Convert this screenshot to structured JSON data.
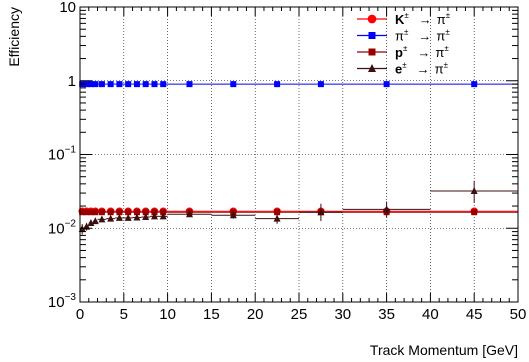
{
  "chart_data": {
    "type": "scatter",
    "xlabel": "Track Momentum [GeV]",
    "ylabel": "Efficiency",
    "xlim": [
      0,
      50
    ],
    "ylim": [
      0.001,
      10
    ],
    "yscale": "log",
    "grid": true,
    "legend_position": "top-right",
    "x_ticks": [
      0,
      5,
      10,
      15,
      20,
      25,
      30,
      35,
      40,
      45,
      50
    ],
    "x_tick_labels": [
      "0",
      "5",
      "10",
      "15",
      "20",
      "25",
      "30",
      "35",
      "40",
      "45",
      "50"
    ],
    "y_ticks": [
      0.001,
      0.01,
      0.1,
      1,
      10
    ],
    "y_tick_labels": [
      {
        "base": "10",
        "exp": "−3"
      },
      {
        "base": "10",
        "exp": "−2"
      },
      {
        "base": "10",
        "exp": "−1"
      },
      {
        "base": "1",
        "exp": ""
      },
      {
        "base": "10",
        "exp": ""
      }
    ],
    "series": [
      {
        "name": "K± → π±",
        "legend_particle": "K",
        "legend_target": "π",
        "legend_charge": "±",
        "legend_arrow": "→",
        "color": "#ff0000",
        "marker": "circle",
        "points": [
          {
            "x": 0.25,
            "y": 0.017,
            "xerr": 0.25
          },
          {
            "x": 0.75,
            "y": 0.017,
            "xerr": 0.25
          },
          {
            "x": 1.25,
            "y": 0.017,
            "xerr": 0.25
          },
          {
            "x": 1.75,
            "y": 0.017,
            "xerr": 0.25
          },
          {
            "x": 2.5,
            "y": 0.017,
            "xerr": 0.5
          },
          {
            "x": 3.5,
            "y": 0.017,
            "xerr": 0.5
          },
          {
            "x": 4.5,
            "y": 0.017,
            "xerr": 0.5
          },
          {
            "x": 5.5,
            "y": 0.017,
            "xerr": 0.5
          },
          {
            "x": 6.5,
            "y": 0.017,
            "xerr": 0.5
          },
          {
            "x": 7.5,
            "y": 0.017,
            "xerr": 0.5
          },
          {
            "x": 8.5,
            "y": 0.017,
            "xerr": 0.5
          },
          {
            "x": 9.5,
            "y": 0.017,
            "xerr": 0.5
          },
          {
            "x": 12.5,
            "y": 0.017,
            "xerr": 2.5
          },
          {
            "x": 17.5,
            "y": 0.017,
            "xerr": 2.5
          },
          {
            "x": 22.5,
            "y": 0.017,
            "xerr": 2.5
          },
          {
            "x": 27.5,
            "y": 0.017,
            "xerr": 2.5
          },
          {
            "x": 35,
            "y": 0.017,
            "xerr": 5
          },
          {
            "x": 45,
            "y": 0.017,
            "xerr": 5
          }
        ]
      },
      {
        "name": "π± → π±",
        "legend_particle": "π",
        "legend_target": "π",
        "legend_charge": "±",
        "legend_arrow": "→",
        "color": "#0000ff",
        "marker": "square",
        "points": [
          {
            "x": 0.25,
            "y": 0.9,
            "xerr": 0.25
          },
          {
            "x": 0.75,
            "y": 0.9,
            "xerr": 0.25
          },
          {
            "x": 1.25,
            "y": 0.9,
            "xerr": 0.25
          },
          {
            "x": 1.75,
            "y": 0.9,
            "xerr": 0.25
          },
          {
            "x": 2.5,
            "y": 0.9,
            "xerr": 0.5
          },
          {
            "x": 3.5,
            "y": 0.9,
            "xerr": 0.5
          },
          {
            "x": 4.5,
            "y": 0.9,
            "xerr": 0.5
          },
          {
            "x": 5.5,
            "y": 0.9,
            "xerr": 0.5
          },
          {
            "x": 6.5,
            "y": 0.9,
            "xerr": 0.5
          },
          {
            "x": 7.5,
            "y": 0.9,
            "xerr": 0.5
          },
          {
            "x": 8.5,
            "y": 0.9,
            "xerr": 0.5
          },
          {
            "x": 9.5,
            "y": 0.9,
            "xerr": 0.5
          },
          {
            "x": 12.5,
            "y": 0.9,
            "xerr": 2.5
          },
          {
            "x": 17.5,
            "y": 0.9,
            "xerr": 2.5
          },
          {
            "x": 22.5,
            "y": 0.9,
            "xerr": 2.5
          },
          {
            "x": 27.5,
            "y": 0.9,
            "xerr": 2.5
          },
          {
            "x": 35,
            "y": 0.9,
            "xerr": 5
          },
          {
            "x": 45,
            "y": 0.9,
            "xerr": 5
          }
        ]
      },
      {
        "name": "p± → π±",
        "legend_particle": "p",
        "legend_target": "π",
        "legend_charge": "±",
        "legend_arrow": "→",
        "color": "#990000",
        "marker": "square",
        "points": [
          {
            "x": 0.25,
            "y": 0.0165,
            "xerr": 0.25
          },
          {
            "x": 0.75,
            "y": 0.0165,
            "xerr": 0.25
          },
          {
            "x": 1.25,
            "y": 0.0165,
            "xerr": 0.25
          },
          {
            "x": 1.75,
            "y": 0.0165,
            "xerr": 0.25
          },
          {
            "x": 2.5,
            "y": 0.0165,
            "xerr": 0.5
          },
          {
            "x": 3.5,
            "y": 0.0165,
            "xerr": 0.5
          },
          {
            "x": 4.5,
            "y": 0.0165,
            "xerr": 0.5
          },
          {
            "x": 5.5,
            "y": 0.0165,
            "xerr": 0.5
          },
          {
            "x": 6.5,
            "y": 0.0165,
            "xerr": 0.5
          },
          {
            "x": 7.5,
            "y": 0.0165,
            "xerr": 0.5
          },
          {
            "x": 8.5,
            "y": 0.0165,
            "xerr": 0.5
          },
          {
            "x": 9.5,
            "y": 0.0165,
            "xerr": 0.5
          },
          {
            "x": 12.5,
            "y": 0.0165,
            "xerr": 2.5
          },
          {
            "x": 17.5,
            "y": 0.0165,
            "xerr": 2.5
          },
          {
            "x": 22.5,
            "y": 0.0165,
            "xerr": 2.5
          },
          {
            "x": 27.5,
            "y": 0.0165,
            "xerr": 2.5
          },
          {
            "x": 35,
            "y": 0.0165,
            "xerr": 5
          },
          {
            "x": 45,
            "y": 0.0165,
            "xerr": 5
          }
        ]
      },
      {
        "name": "e± → π±",
        "legend_particle": "e",
        "legend_target": "π",
        "legend_charge": "±",
        "legend_arrow": "→",
        "color": "#3d0f0f",
        "marker": "triangle",
        "points": [
          {
            "x": 0.25,
            "y": 0.0098,
            "xerr": 0.25,
            "yerr_lo": 0.0016,
            "yerr_hi": 0.0016
          },
          {
            "x": 0.75,
            "y": 0.0105,
            "xerr": 0.25,
            "yerr_lo": 0.0012,
            "yerr_hi": 0.0012
          },
          {
            "x": 1.25,
            "y": 0.0118,
            "xerr": 0.25,
            "yerr_lo": 0.001,
            "yerr_hi": 0.001
          },
          {
            "x": 1.75,
            "y": 0.0125,
            "xerr": 0.25,
            "yerr_lo": 0.001,
            "yerr_hi": 0.001
          },
          {
            "x": 2.5,
            "y": 0.0132,
            "xerr": 0.5,
            "yerr_lo": 0.0009,
            "yerr_hi": 0.0009
          },
          {
            "x": 3.5,
            "y": 0.0135,
            "xerr": 0.5,
            "yerr_lo": 0.0009,
            "yerr_hi": 0.0009
          },
          {
            "x": 4.5,
            "y": 0.0138,
            "xerr": 0.5,
            "yerr_lo": 0.0009,
            "yerr_hi": 0.0009
          },
          {
            "x": 5.5,
            "y": 0.0138,
            "xerr": 0.5,
            "yerr_lo": 0.0009,
            "yerr_hi": 0.0009
          },
          {
            "x": 6.5,
            "y": 0.014,
            "xerr": 0.5,
            "yerr_lo": 0.001,
            "yerr_hi": 0.001
          },
          {
            "x": 7.5,
            "y": 0.0142,
            "xerr": 0.5,
            "yerr_lo": 0.001,
            "yerr_hi": 0.001
          },
          {
            "x": 8.5,
            "y": 0.0145,
            "xerr": 0.5,
            "yerr_lo": 0.0011,
            "yerr_hi": 0.0011
          },
          {
            "x": 9.5,
            "y": 0.0145,
            "xerr": 0.5,
            "yerr_lo": 0.0012,
            "yerr_hi": 0.0012
          },
          {
            "x": 12.5,
            "y": 0.0155,
            "xerr": 2.5,
            "yerr_lo": 0.001,
            "yerr_hi": 0.001
          },
          {
            "x": 17.5,
            "y": 0.015,
            "xerr": 2.5,
            "yerr_lo": 0.0015,
            "yerr_hi": 0.0015
          },
          {
            "x": 22.5,
            "y": 0.0135,
            "xerr": 2.5,
            "yerr_lo": 0.002,
            "yerr_hi": 0.002
          },
          {
            "x": 27.5,
            "y": 0.0165,
            "xerr": 2.5,
            "yerr_lo": 0.004,
            "yerr_hi": 0.005
          },
          {
            "x": 35,
            "y": 0.018,
            "xerr": 5,
            "yerr_lo": 0.004,
            "yerr_hi": 0.005
          },
          {
            "x": 45,
            "y": 0.032,
            "xerr": 5,
            "yerr_lo": 0.01,
            "yerr_hi": 0.012
          }
        ]
      }
    ]
  }
}
